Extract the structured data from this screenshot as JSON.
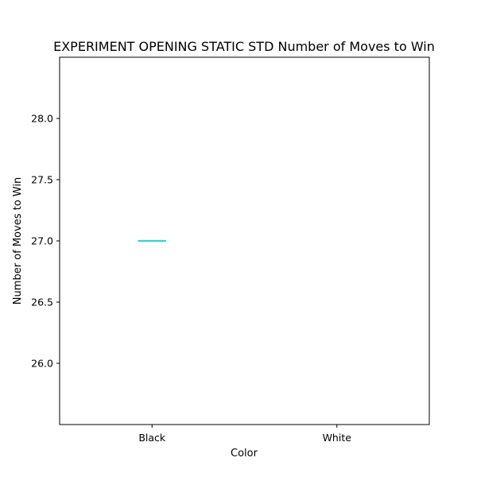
{
  "chart_data": {
    "type": "box",
    "title": "EXPERIMENT OPENING STATIC STD Number of Moves to Win",
    "xlabel": "Color",
    "ylabel": "Number of Moves to Win",
    "categories": [
      "Black",
      "White"
    ],
    "boxes": [
      {
        "category": "Black",
        "min": 27.0,
        "q1": 27.0,
        "median": 27.0,
        "q3": 27.0,
        "max": 27.0
      }
    ],
    "ylim": [
      25.5,
      28.5
    ],
    "yticks": [
      26.0,
      26.5,
      27.0,
      27.5,
      28.0
    ],
    "ytick_labels": [
      "26.0",
      "26.5",
      "27.0",
      "27.5",
      "28.0"
    ],
    "grid": false,
    "colors": {
      "box": "#00bfc4",
      "median": "#4fd6da",
      "axis": "#000000"
    }
  }
}
